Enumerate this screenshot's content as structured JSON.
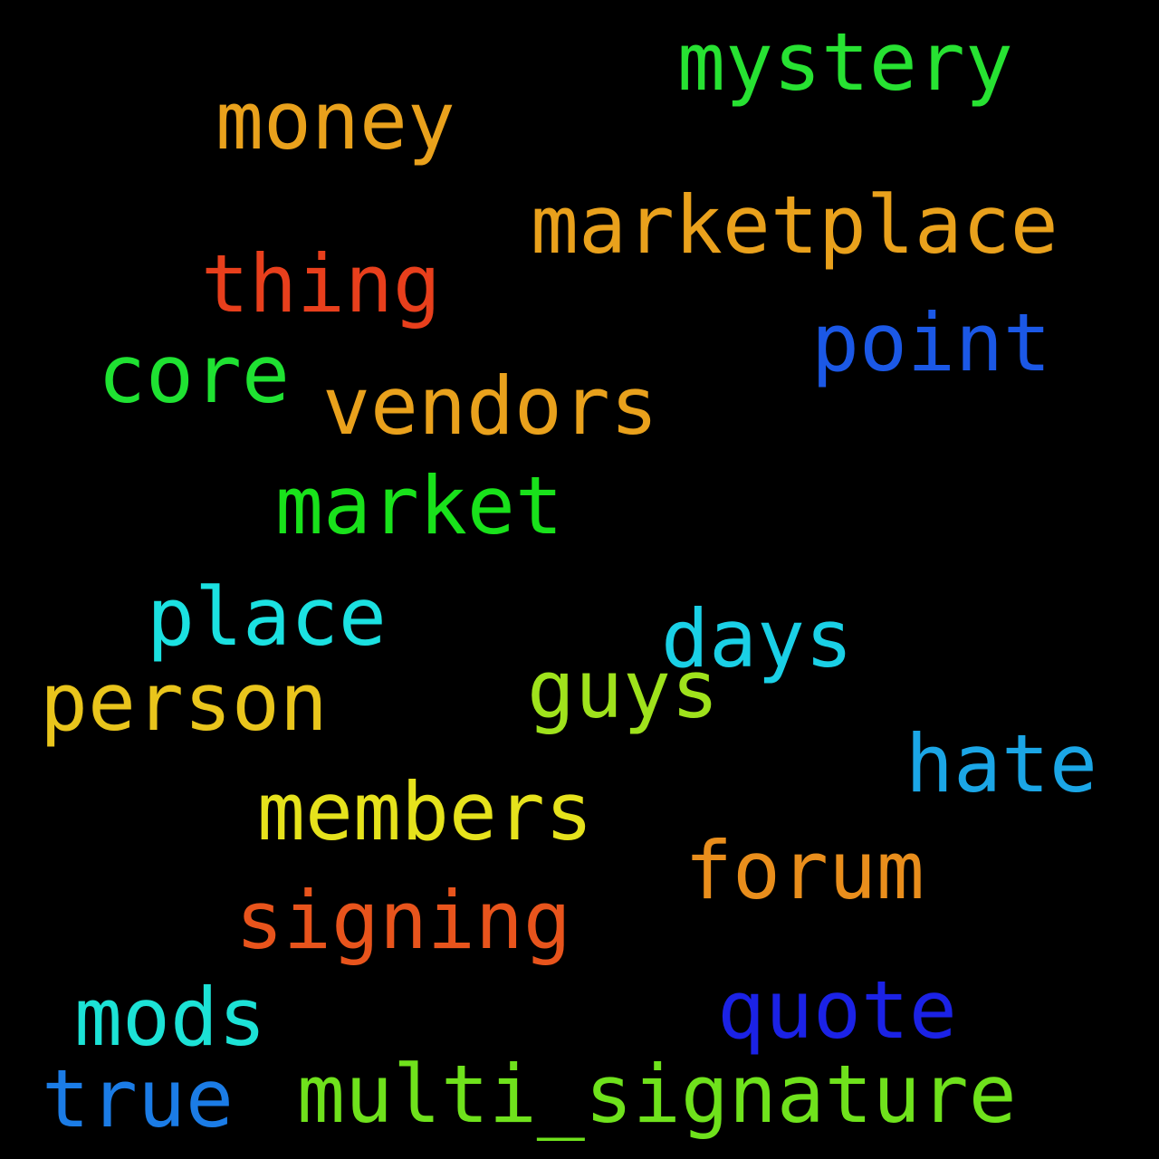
{
  "background_color": "#000000",
  "words": [
    {
      "text": "mystery",
      "color": "#27e232"
    },
    {
      "text": "money",
      "color": "#e9a11c"
    },
    {
      "text": "marketplace",
      "color": "#e9a11c"
    },
    {
      "text": "thing",
      "color": "#e83f1c"
    },
    {
      "text": "point",
      "color": "#1b58e6"
    },
    {
      "text": "core",
      "color": "#1fe232"
    },
    {
      "text": "vendors",
      "color": "#e9a11c"
    },
    {
      "text": "market",
      "color": "#19e21b"
    },
    {
      "text": "place",
      "color": "#1be1e1"
    },
    {
      "text": "days",
      "color": "#1ad0e6"
    },
    {
      "text": "person",
      "color": "#e9c51c"
    },
    {
      "text": "guys",
      "color": "#9fe21c"
    },
    {
      "text": "hate",
      "color": "#1ba6e6"
    },
    {
      "text": "members",
      "color": "#e6e21c"
    },
    {
      "text": "forum",
      "color": "#e98e1c"
    },
    {
      "text": "signing",
      "color": "#e8541c"
    },
    {
      "text": "mods",
      "color": "#1ce2d6"
    },
    {
      "text": "quote",
      "color": "#1b22e6"
    },
    {
      "text": "true",
      "color": "#1b7ce6"
    },
    {
      "text": "multi_signature",
      "color": "#6fe21c"
    }
  ]
}
